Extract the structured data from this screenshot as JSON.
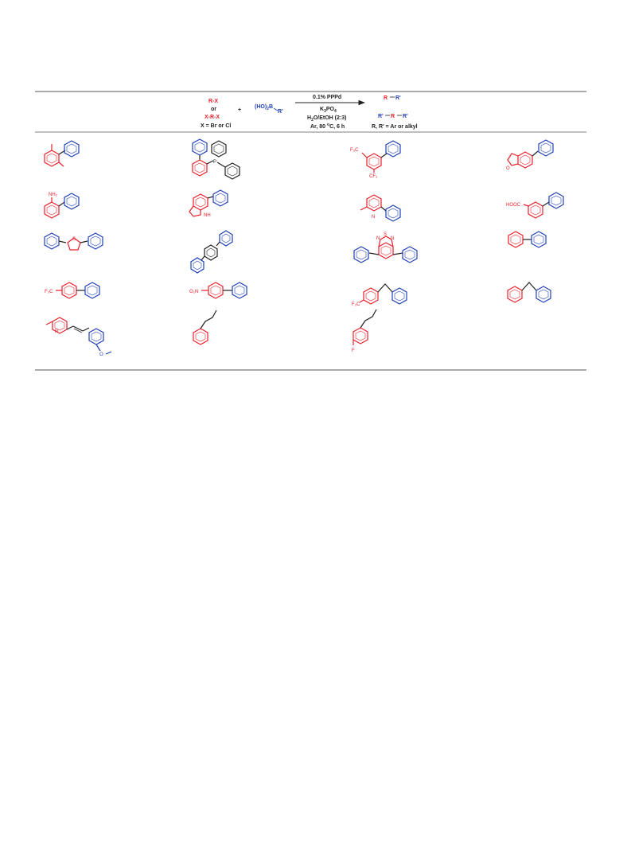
{
  "scheme": {
    "reactant1": {
      "line1": "R-X",
      "line2": "or",
      "line3": "X-R-X",
      "line4": "X =  Br or Cl"
    },
    "plus": "+",
    "reactant2": {
      "prefix": "(HO)",
      "sub": "2",
      "mid": "B",
      "suffix": "R'"
    },
    "conditions": {
      "catalyst": "0.1% PPPd",
      "base_prefix": "K",
      "base_sub1": "3",
      "base_mid": "PO",
      "base_sub2": "4",
      "solvent_prefix": "H",
      "solvent_sub": "2",
      "solvent_suffix": "O/EtOH (2:3)",
      "temp_prefix": "Ar, 80 ",
      "temp_sup": "o",
      "temp_suffix": "C, 6 h"
    },
    "product": {
      "p1_r": "R",
      "p1_rp": "R'",
      "p2_rp1": "R'",
      "p2_r": "R",
      "p2_rp2": "R'",
      "note": "R, R' = Ar or alkyl"
    }
  },
  "labels": {
    "cf3_a": "F₃C",
    "cf3_b": "CF₃",
    "nh2": "NH₂",
    "nh": "NH",
    "n": "N",
    "hooc": "HOOC",
    "s": "S",
    "o": "O",
    "p": "P",
    "btd_n1": "N",
    "btd_s": "S",
    "btd_n2": "N",
    "f3c_1": "F₃C",
    "o2n": "O₂N",
    "f3c_2": "F₃C",
    "ome_o": "O",
    "f": "F"
  },
  "colors": {
    "red": "#e8202a",
    "blue": "#1f3fb8",
    "black": "#222222",
    "rule": "#555555"
  }
}
